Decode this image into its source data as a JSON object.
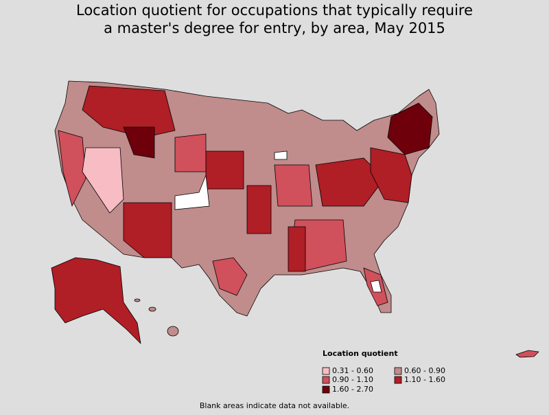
{
  "title": [
    "Location quotient for occupations that typically require",
    "a master's degree for entry, by area, May 2015"
  ],
  "legend": {
    "title": "Location quotient",
    "items": [
      {
        "label": "0.31 - 0.60",
        "color": "#f7bcc4"
      },
      {
        "label": "0.60 - 0.90",
        "color": "#c08c8c"
      },
      {
        "label": "0.90 - 1.10",
        "color": "#d0505c"
      },
      {
        "label": "1.10 - 1.60",
        "color": "#b01e26"
      },
      {
        "label": "1.60 - 2.70",
        "color": "#6e000c"
      }
    ]
  },
  "note": "Blank areas indicate data not available."
}
